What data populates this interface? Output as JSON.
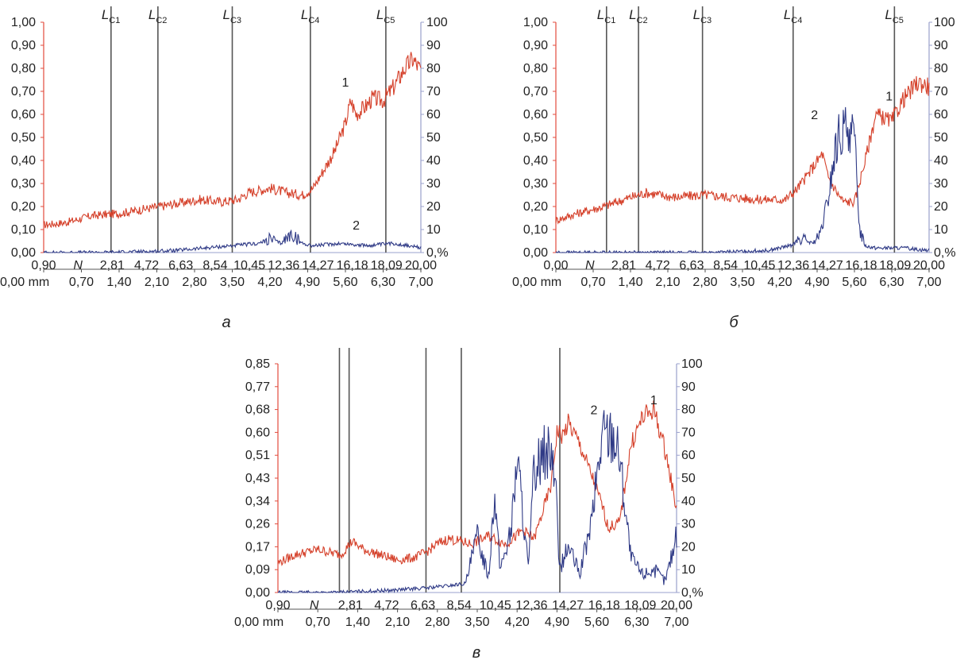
{
  "colors": {
    "red": "#d5412b",
    "blue": "#2f3a86",
    "axis_red": "#e24b3c",
    "axis_blue": "#9aa0cc",
    "marker": "#555555",
    "text": "#222222"
  },
  "chart_data": [
    {
      "type": "line",
      "panel_label": "а",
      "left_axis": {
        "ylim": [
          0,
          1.0
        ],
        "ticks": [
          "0,00",
          "0,10",
          "0,20",
          "0,30",
          "0,40",
          "0,50",
          "0,60",
          "0,70",
          "0,80",
          "0,90",
          "1,00"
        ]
      },
      "right_axis": {
        "ylim": [
          0,
          100
        ],
        "ticks": [
          "0,%",
          "10",
          "20",
          "30",
          "40",
          "50",
          "60",
          "70",
          "80",
          "90",
          "100"
        ]
      },
      "n_axis": {
        "xlim": [
          0.9,
          20.0
        ],
        "ticks": [
          "0,90",
          "N",
          "2,81",
          "4,72",
          "6,63",
          "8,54",
          "10,45",
          "12,36",
          "14,27",
          "16,18",
          "18,09",
          "20,00"
        ]
      },
      "mm_axis": {
        "xlim": [
          0,
          7.0
        ],
        "ticks": [
          "0,00 mm",
          "0,70",
          "1,40",
          "2,10",
          "2,80",
          "3,50",
          "4,20",
          "4,90",
          "5,60",
          "6,30",
          "7,00"
        ]
      },
      "markers": {
        "labels": [
          "L_C1",
          "L_C2",
          "L_C3",
          "L_C4",
          "L_C5"
        ],
        "mm": [
          1.25,
          2.12,
          3.5,
          4.95,
          6.35
        ]
      },
      "series": [
        {
          "name": "1",
          "axis": "left",
          "mm": [
            0,
            0.4,
            0.9,
            1.4,
            1.9,
            2.4,
            2.9,
            3.3,
            3.6,
            3.8,
            4.2,
            4.5,
            4.8,
            5.0,
            5.2,
            5.4,
            5.6,
            5.7,
            5.8,
            6.0,
            6.1,
            6.3,
            6.5,
            6.7,
            6.85,
            7.0
          ],
          "values": [
            0.12,
            0.13,
            0.16,
            0.17,
            0.19,
            0.21,
            0.23,
            0.22,
            0.23,
            0.26,
            0.28,
            0.26,
            0.25,
            0.28,
            0.36,
            0.44,
            0.56,
            0.66,
            0.6,
            0.64,
            0.67,
            0.66,
            0.72,
            0.8,
            0.84,
            0.79
          ]
        },
        {
          "name": "2",
          "axis": "right",
          "mm": [
            0,
            1.0,
            2.0,
            2.5,
            3.0,
            3.5,
            4.0,
            4.2,
            4.4,
            4.6,
            4.8,
            5.0,
            5.5,
            6.0,
            6.5,
            7.0
          ],
          "values": [
            0,
            0,
            0.5,
            1,
            2,
            3,
            4,
            6,
            4,
            8,
            4,
            3,
            4,
            3,
            4,
            2
          ]
        }
      ],
      "curve_labels": [
        "1",
        "2"
      ]
    },
    {
      "type": "line",
      "panel_label": "б",
      "left_axis": {
        "ylim": [
          0,
          1.0
        ],
        "ticks": [
          "0,00",
          "0,10",
          "0,20",
          "0,30",
          "0,40",
          "0,50",
          "0,60",
          "0,70",
          "0,80",
          "0,90",
          "1,00"
        ]
      },
      "right_axis": {
        "ylim": [
          0,
          100
        ],
        "ticks": [
          "0,%",
          "10",
          "20",
          "30",
          "40",
          "50",
          "60",
          "70",
          "80",
          "90",
          "100"
        ]
      },
      "n_axis": {
        "xlim": [
          0.0,
          20.0
        ],
        "ticks": [
          "0,00",
          "N",
          "2,81",
          "4,72",
          "6,63",
          "8,54",
          "10,45",
          "12,36",
          "14,27",
          "16,18",
          "18,09",
          "20,00"
        ]
      },
      "mm_axis": {
        "xlim": [
          0,
          7.0
        ],
        "ticks": [
          "0,00 mm",
          "0,70",
          "1,40",
          "2,10",
          "2,80",
          "3,50",
          "4,20",
          "4,90",
          "5,60",
          "6,30",
          "7,00"
        ]
      },
      "markers": {
        "labels": [
          "L_C1",
          "L_C2",
          "L_C3",
          "L_C4",
          "L_C5"
        ],
        "mm": [
          0.95,
          1.55,
          2.75,
          4.45,
          6.35
        ]
      },
      "series": [
        {
          "name": "1",
          "axis": "left",
          "mm": [
            0,
            0.4,
            0.9,
            1.4,
            1.7,
            2.2,
            2.8,
            3.3,
            3.8,
            4.3,
            4.5,
            4.7,
            5.0,
            5.1,
            5.3,
            5.4,
            5.6,
            5.8,
            6.0,
            6.3,
            6.5,
            6.8,
            7.0
          ],
          "values": [
            0.14,
            0.17,
            0.2,
            0.24,
            0.26,
            0.24,
            0.25,
            0.24,
            0.23,
            0.23,
            0.27,
            0.33,
            0.43,
            0.33,
            0.25,
            0.22,
            0.22,
            0.4,
            0.6,
            0.57,
            0.66,
            0.74,
            0.72
          ]
        },
        {
          "name": "2",
          "axis": "right",
          "mm": [
            0,
            3.0,
            4.0,
            4.4,
            4.6,
            4.8,
            4.95,
            5.1,
            5.2,
            5.3,
            5.4,
            5.5,
            5.6,
            5.65,
            5.7,
            5.8,
            6.0,
            6.5,
            7.0
          ],
          "values": [
            0,
            0,
            1,
            3,
            6,
            4,
            7,
            22,
            38,
            50,
            52,
            55,
            48,
            30,
            10,
            3,
            2,
            2,
            1
          ]
        }
      ],
      "curve_labels": [
        "1",
        "2"
      ]
    },
    {
      "type": "line",
      "panel_label": "в",
      "left_axis": {
        "ylim": [
          0,
          0.85
        ],
        "ticks": [
          "0,00",
          "0,09",
          "0,17",
          "0,26",
          "0,34",
          "0,43",
          "0,51",
          "0,60",
          "0,68",
          "0,77",
          "0,85"
        ]
      },
      "right_axis": {
        "ylim": [
          0,
          100
        ],
        "ticks": [
          "0,%",
          "10",
          "20",
          "30",
          "40",
          "50",
          "60",
          "70",
          "80",
          "90",
          "100"
        ]
      },
      "n_axis": {
        "xlim": [
          0.9,
          20.0
        ],
        "ticks": [
          "0,90",
          "N",
          "2,81",
          "4,72",
          "6,63",
          "8,54",
          "10,45",
          "12,36",
          "14,27",
          "16,18",
          "18,09",
          "20,00"
        ]
      },
      "mm_axis": {
        "xlim": [
          0,
          7.0
        ],
        "ticks": [
          "0,00 mm",
          "0,70",
          "1,40",
          "2,10",
          "2,80",
          "3,50",
          "4,20",
          "4,90",
          "5,60",
          "6,30",
          "7,00"
        ]
      },
      "markers": {
        "labels": [
          "",
          "",
          "",
          "",
          ""
        ],
        "mm": [
          1.08,
          1.25,
          2.6,
          3.22,
          4.95
        ]
      },
      "series": [
        {
          "name": "1",
          "axis": "left",
          "mm": [
            0,
            0.3,
            0.7,
            1.1,
            1.3,
            1.5,
            1.8,
            2.1,
            2.4,
            2.6,
            2.8,
            3.0,
            3.2,
            3.4,
            3.7,
            4.0,
            4.3,
            4.5,
            4.8,
            4.9,
            5.0,
            5.1,
            5.3,
            5.5,
            5.7,
            5.8,
            6.0,
            6.2,
            6.4,
            6.6,
            6.8,
            7.0
          ],
          "values": [
            0.11,
            0.14,
            0.16,
            0.14,
            0.19,
            0.16,
            0.14,
            0.12,
            0.13,
            0.15,
            0.18,
            0.2,
            0.19,
            0.18,
            0.21,
            0.18,
            0.23,
            0.2,
            0.4,
            0.6,
            0.58,
            0.63,
            0.55,
            0.44,
            0.32,
            0.24,
            0.26,
            0.55,
            0.65,
            0.68,
            0.53,
            0.31
          ]
        },
        {
          "name": "2",
          "axis": "right",
          "mm": [
            0,
            1.0,
            2.0,
            2.6,
            3.0,
            3.3,
            3.5,
            3.7,
            3.8,
            3.9,
            4.1,
            4.2,
            4.4,
            4.5,
            4.7,
            4.85,
            4.95,
            5.1,
            5.3,
            5.5,
            5.7,
            5.9,
            6.0,
            6.2,
            6.4,
            6.6,
            6.8,
            7.0
          ],
          "values": [
            0,
            0,
            1,
            2,
            3,
            4,
            25,
            7,
            45,
            10,
            28,
            60,
            10,
            55,
            62,
            58,
            10,
            20,
            8,
            30,
            70,
            70,
            60,
            15,
            8,
            10,
            5,
            25
          ]
        }
      ],
      "curve_labels": [
        "1",
        "2"
      ]
    }
  ]
}
